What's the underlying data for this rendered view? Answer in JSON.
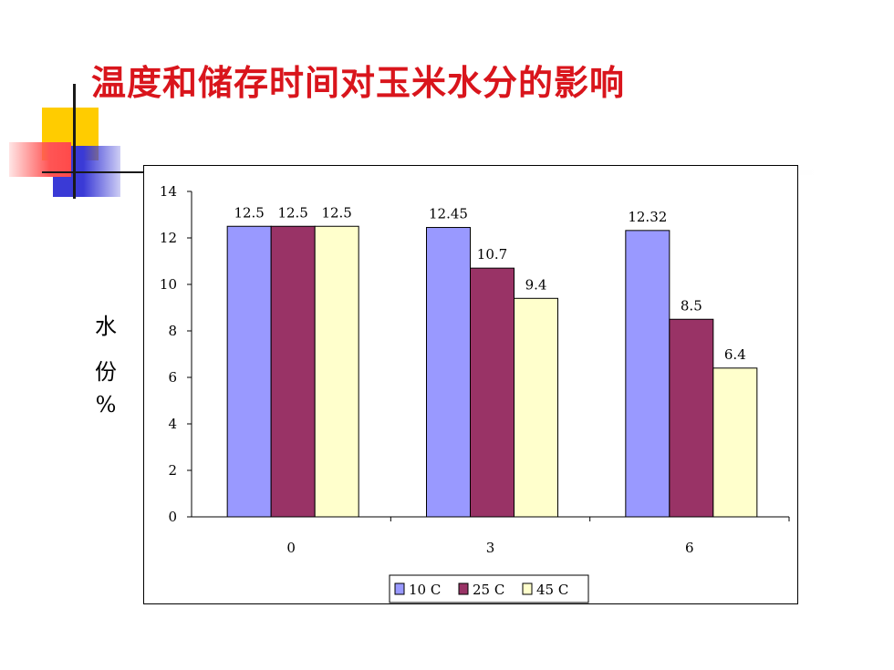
{
  "slide": {
    "title": "温度和储存时间对玉米水分的影响"
  },
  "colors": {
    "title": "#d9151c",
    "series_10C": "#9999ff",
    "series_25C": "#993366",
    "series_45C": "#ffffcc",
    "deco_yellow": "#ffcc00",
    "deco_blue": "#3a3ad6",
    "deco_red": "#ff5555"
  },
  "chart_data": {
    "type": "bar",
    "title": "",
    "xlabel": "",
    "ylabel_chars": [
      "水",
      "份",
      "%"
    ],
    "categories": [
      "0",
      "3",
      "6"
    ],
    "series": [
      {
        "name": "10 C",
        "color": "#9999ff",
        "values": [
          12.5,
          12.45,
          12.32
        ],
        "labels": [
          "12.5",
          "12.45",
          "12.32"
        ]
      },
      {
        "name": "25 C",
        "color": "#993366",
        "values": [
          12.5,
          10.7,
          8.5
        ],
        "labels": [
          "12.5",
          "10.7",
          "8.5"
        ]
      },
      {
        "name": "45 C",
        "color": "#ffffcc",
        "values": [
          12.5,
          9.4,
          6.4
        ],
        "labels": [
          "12.5",
          "9.4",
          "6.4"
        ]
      }
    ],
    "ylim": [
      0,
      14
    ],
    "yticks": [
      "0",
      "2",
      "4",
      "6",
      "8",
      "10",
      "12",
      "14"
    ],
    "grid": false,
    "legend_position": "bottom"
  }
}
